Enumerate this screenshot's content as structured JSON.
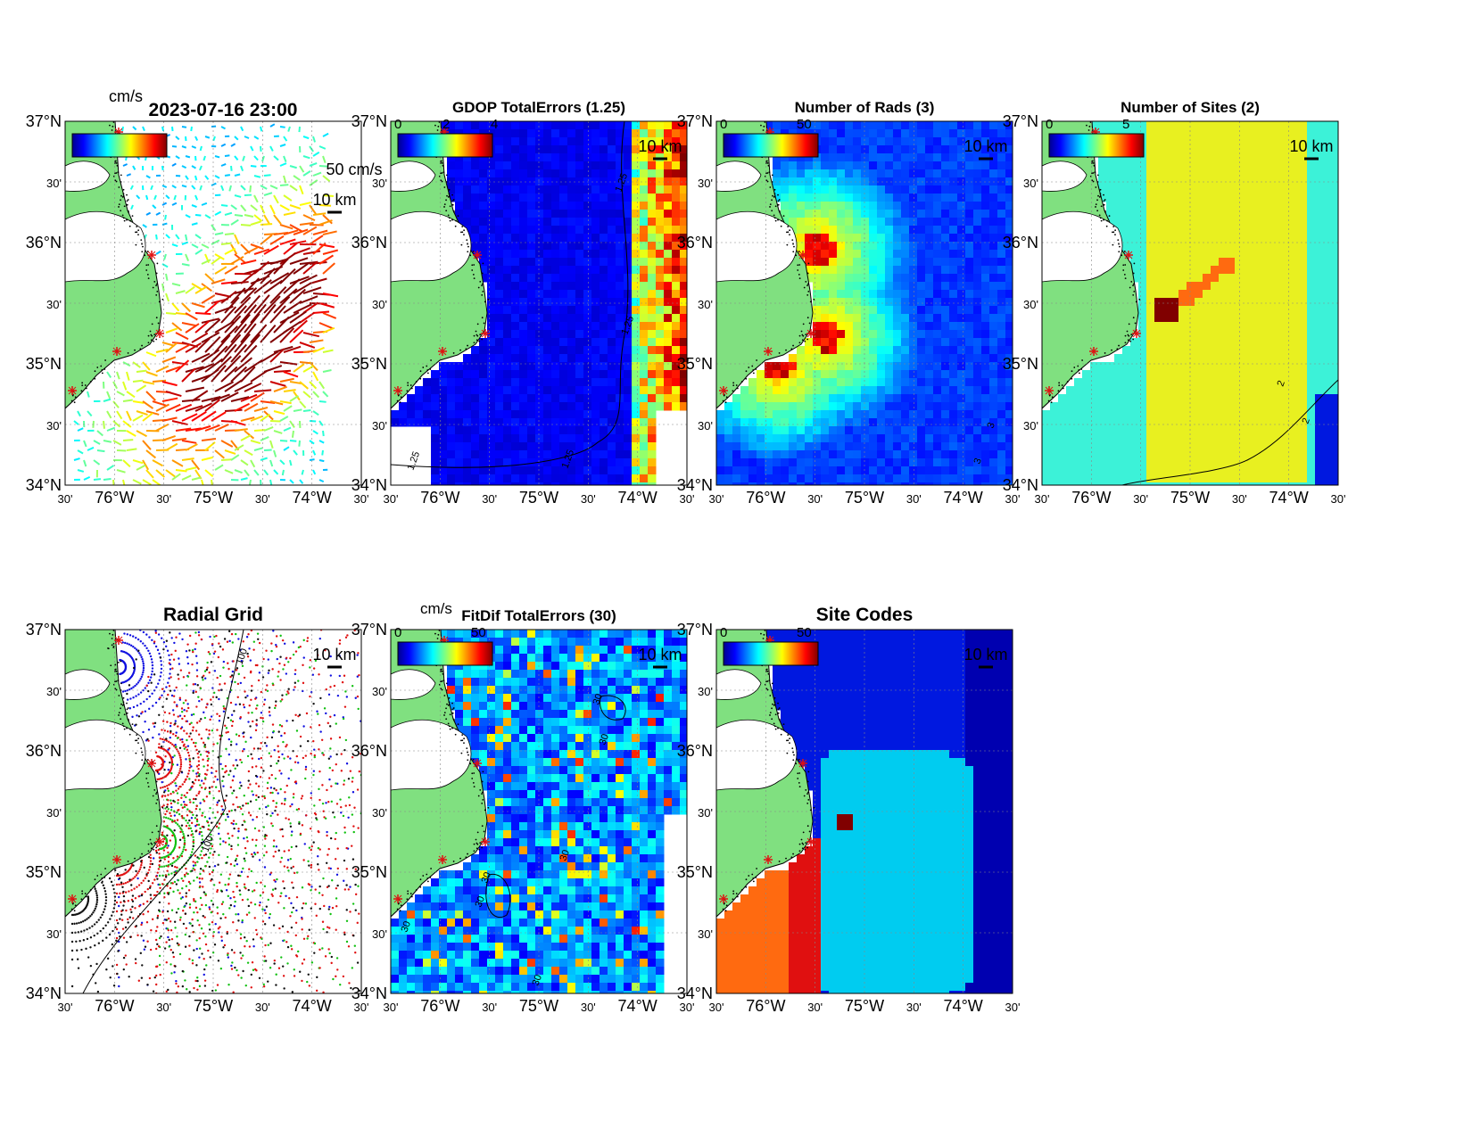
{
  "figure": {
    "timestamp": "2023-07-16 23:00",
    "timestamp_sub": "cm/s",
    "colors": {
      "land": "#80e080",
      "ocean_deep": "#0a22cc",
      "ocean_mid": "#2456ee",
      "cyan": "#3cf2d8",
      "yellow": "#e8f020",
      "orange": "#ff6a10",
      "red": "#e01010",
      "darkred": "#800000",
      "navy": "#0000b0",
      "lightblue": "#00ccf0",
      "mid_blue": "#0018e0"
    }
  },
  "axes": {
    "lat_labels": [
      "37°N",
      "30'",
      "36°N",
      "30'",
      "35°N",
      "30'",
      "34°N"
    ],
    "lon_labels": [
      "30'",
      "76°W",
      "30'",
      "75°W",
      "30'",
      "74°W",
      "30'"
    ]
  },
  "panels": [
    {
      "id": "total-currents",
      "title": "",
      "colorbar_label": "cm/s",
      "colorbar_ticks": [],
      "scale_label": "10 km",
      "extra_label": "50 cm/s",
      "contour_label": ""
    },
    {
      "id": "gdop",
      "title": "GDOP TotalErrors (1.25)",
      "colorbar_label": "",
      "colorbar_ticks": [
        "0",
        "2",
        "4"
      ],
      "scale_label": "10 km",
      "extra_label": "",
      "contour_label": "1.25"
    },
    {
      "id": "num-rads",
      "title": "Number of Rads (3)",
      "colorbar_label": "",
      "colorbar_ticks": [
        "0",
        "50"
      ],
      "scale_label": "10 km",
      "extra_label": "",
      "contour_label": "3"
    },
    {
      "id": "num-sites",
      "title": "Number of Sites (2)",
      "colorbar_label": "",
      "colorbar_ticks": [
        "0",
        "5"
      ],
      "scale_label": "10 km",
      "extra_label": "",
      "contour_label": "2"
    },
    {
      "id": "radial-grid",
      "title": "Radial Grid",
      "colorbar_label": "",
      "colorbar_ticks": [],
      "scale_label": "10 km",
      "extra_label": "",
      "contour_label": "100"
    },
    {
      "id": "fitdif",
      "title": "FitDif TotalErrors (30)",
      "colorbar_label": "cm/s",
      "colorbar_ticks": [
        "0",
        "50"
      ],
      "scale_label": "10 km",
      "extra_label": "",
      "contour_label": "30"
    },
    {
      "id": "site-codes",
      "title": "Site Codes",
      "colorbar_label": "",
      "colorbar_ticks": [
        "0",
        "50"
      ],
      "scale_label": "10 km",
      "extra_label": "",
      "contour_label": ""
    }
  ]
}
